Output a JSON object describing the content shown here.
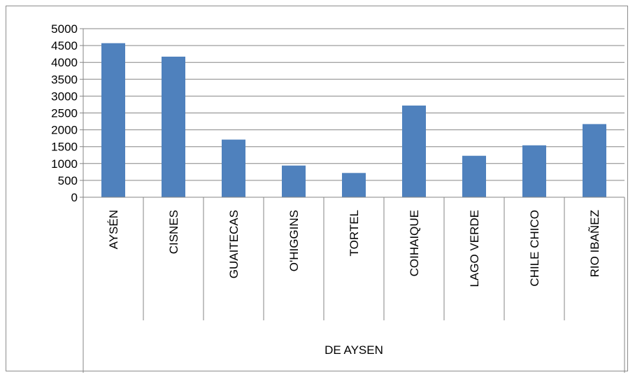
{
  "chart_data": {
    "type": "bar",
    "title": "",
    "xlabel": "",
    "ylabel": "",
    "categories": [
      "AYSÉN",
      "CISNES",
      "GUAITECAS",
      "O'HIGGINS",
      "TORTEL",
      "COIHAIQUE",
      "LAGO VERDE",
      "CHILE CHICO",
      "RIO IBAÑEZ"
    ],
    "group_label": "DE AYSEN",
    "series": [
      {
        "values": [
          4570,
          4170,
          1710,
          940,
          720,
          2720,
          1230,
          1540,
          2170
        ]
      }
    ],
    "ylim": [
      0,
      5000
    ],
    "yticks": [
      "0",
      "500",
      "1000",
      "1500",
      "2000",
      "2500",
      "3000",
      "3500",
      "4000",
      "4500",
      "5000"
    ],
    "grid": true,
    "legend": "none",
    "colors": {
      "bar": "#4f81bd",
      "grid": "#868686",
      "axis": "#868686"
    }
  }
}
